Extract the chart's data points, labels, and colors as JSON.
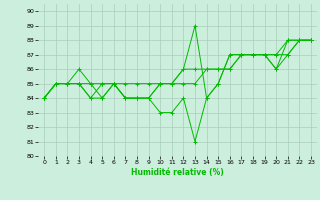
{
  "title": "",
  "xlabel": "Humidité relative (%)",
  "ylabel": "",
  "bg_color": "#cceedd",
  "grid_color": "#aaccbb",
  "line_color": "#00bb00",
  "xlim": [
    -0.5,
    23.5
  ],
  "ylim": [
    80,
    90.5
  ],
  "yticks": [
    80,
    81,
    82,
    83,
    84,
    85,
    86,
    87,
    88,
    89,
    90
  ],
  "xticks": [
    0,
    1,
    2,
    3,
    4,
    5,
    6,
    7,
    8,
    9,
    10,
    11,
    12,
    13,
    14,
    15,
    16,
    17,
    18,
    19,
    20,
    21,
    22,
    23
  ],
  "series": [
    [
      84,
      85,
      85,
      86,
      85,
      84,
      85,
      84,
      84,
      84,
      83,
      83,
      84,
      81,
      84,
      85,
      87,
      87,
      87,
      87,
      86,
      88,
      88,
      88
    ],
    [
      84,
      85,
      85,
      85,
      84,
      85,
      85,
      84,
      84,
      84,
      85,
      85,
      86,
      86,
      86,
      86,
      86,
      87,
      87,
      87,
      86,
      87,
      88,
      88
    ],
    [
      84,
      85,
      85,
      85,
      85,
      85,
      85,
      85,
      85,
      85,
      85,
      85,
      85,
      85,
      86,
      86,
      86,
      87,
      87,
      87,
      87,
      87,
      88,
      88
    ],
    [
      84,
      85,
      85,
      85,
      84,
      84,
      85,
      84,
      84,
      84,
      85,
      85,
      86,
      89,
      84,
      85,
      87,
      87,
      87,
      87,
      87,
      88,
      88,
      88
    ]
  ]
}
